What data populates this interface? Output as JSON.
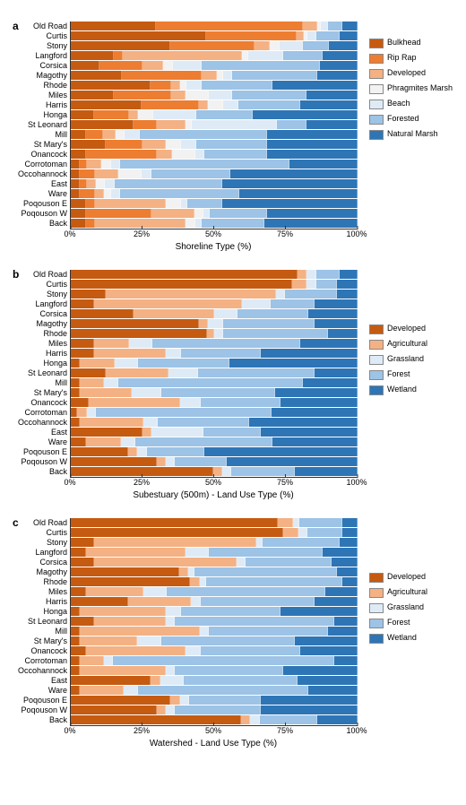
{
  "sites": [
    "Old Road",
    "Curtis",
    "Stony",
    "Langford",
    "Corsica",
    "Magothy",
    "Rhode",
    "Miles",
    "Harris",
    "Honga",
    "St Leonard",
    "Mill",
    "St Mary's",
    "Onancock",
    "Corrotoman",
    "Occohannock",
    "East",
    "Ware",
    "Poqouson E",
    "Poqouson W",
    "Back"
  ],
  "xticks": [
    0,
    25,
    50,
    75,
    100
  ],
  "panels": [
    {
      "label": "a",
      "xlabel": "Shoreline Type (%)",
      "legend": [
        {
          "color": "#c55a11",
          "label": "Bulkhead"
        },
        {
          "color": "#ed7d31",
          "label": "Rip Rap"
        },
        {
          "color": "#f4b183",
          "label": "Developed"
        },
        {
          "color": "#f2f2f2",
          "label": "Phragmites Marsh"
        },
        {
          "color": "#deebf7",
          "label": "Beach"
        },
        {
          "color": "#9dc3e6",
          "label": "Forested"
        },
        {
          "color": "#2e75b6",
          "label": "Natural Marsh"
        }
      ],
      "data": [
        [
          30,
          52,
          5,
          1,
          2,
          5,
          5
        ],
        [
          48,
          32,
          2,
          1,
          3,
          8,
          6
        ],
        [
          35,
          30,
          5,
          3,
          8,
          9,
          10
        ],
        [
          15,
          3,
          42,
          2,
          12,
          14,
          12
        ],
        [
          10,
          15,
          7,
          3,
          10,
          42,
          13
        ],
        [
          18,
          28,
          5,
          2,
          3,
          30,
          14
        ],
        [
          28,
          7,
          3,
          2,
          5,
          25,
          30
        ],
        [
          15,
          20,
          5,
          8,
          8,
          26,
          18
        ],
        [
          25,
          20,
          3,
          5,
          5,
          22,
          20
        ],
        [
          8,
          12,
          3,
          5,
          15,
          20,
          37
        ],
        [
          22,
          8,
          10,
          2,
          30,
          10,
          18
        ],
        [
          5,
          6,
          4,
          3,
          5,
          45,
          32
        ],
        [
          12,
          13,
          8,
          5,
          5,
          25,
          32
        ],
        [
          5,
          25,
          5,
          8,
          3,
          22,
          32
        ],
        [
          3,
          2,
          5,
          3,
          3,
          60,
          24
        ],
        [
          3,
          5,
          8,
          8,
          3,
          28,
          45
        ],
        [
          3,
          2,
          3,
          3,
          3,
          38,
          48
        ],
        [
          3,
          5,
          3,
          2,
          3,
          42,
          42
        ],
        [
          5,
          3,
          25,
          5,
          2,
          12,
          48
        ],
        [
          5,
          23,
          15,
          3,
          2,
          20,
          32
        ],
        [
          5,
          3,
          32,
          3,
          2,
          22,
          33
        ]
      ]
    },
    {
      "label": "b",
      "xlabel": "Subestuary (500m) - Land Use Type (%)",
      "legend": [
        {
          "color": "#c55a11",
          "label": "Developed"
        },
        {
          "color": "#f4b183",
          "label": "Agricultural"
        },
        {
          "color": "#deebf7",
          "label": "Grassland"
        },
        {
          "color": "#9dc3e6",
          "label": "Forest"
        },
        {
          "color": "#2e75b6",
          "label": "Wetland"
        }
      ],
      "data": [
        [
          80,
          3,
          3,
          8,
          6
        ],
        [
          78,
          5,
          3,
          7,
          7
        ],
        [
          12,
          60,
          3,
          18,
          7
        ],
        [
          8,
          52,
          10,
          15,
          15
        ],
        [
          22,
          28,
          8,
          25,
          17
        ],
        [
          45,
          3,
          5,
          32,
          15
        ],
        [
          48,
          2,
          3,
          37,
          10
        ],
        [
          8,
          12,
          8,
          52,
          20
        ],
        [
          8,
          25,
          5,
          28,
          34
        ],
        [
          3,
          12,
          8,
          32,
          45
        ],
        [
          12,
          22,
          10,
          41,
          15
        ],
        [
          3,
          8,
          5,
          65,
          19
        ],
        [
          3,
          18,
          10,
          40,
          29
        ],
        [
          6,
          32,
          7,
          28,
          27
        ],
        [
          2,
          3,
          3,
          62,
          30
        ],
        [
          3,
          22,
          5,
          32,
          38
        ],
        [
          25,
          3,
          18,
          20,
          34
        ],
        [
          5,
          12,
          5,
          48,
          30
        ],
        [
          20,
          3,
          3,
          20,
          54
        ],
        [
          30,
          3,
          3,
          18,
          46
        ],
        [
          50,
          3,
          3,
          22,
          22
        ]
      ]
    },
    {
      "label": "c",
      "xlabel": "Watershed - Land Use Type (%)",
      "legend": [
        {
          "color": "#c55a11",
          "label": "Developed"
        },
        {
          "color": "#f4b183",
          "label": "Agricultural"
        },
        {
          "color": "#deebf7",
          "label": "Grassland"
        },
        {
          "color": "#9dc3e6",
          "label": "Forest"
        },
        {
          "color": "#2e75b6",
          "label": "Wetland"
        }
      ],
      "data": [
        [
          73,
          5,
          2,
          15,
          5
        ],
        [
          75,
          5,
          3,
          12,
          5
        ],
        [
          8,
          57,
          2,
          27,
          6
        ],
        [
          5,
          35,
          8,
          40,
          12
        ],
        [
          8,
          50,
          3,
          30,
          9
        ],
        [
          38,
          3,
          2,
          50,
          7
        ],
        [
          42,
          3,
          2,
          48,
          5
        ],
        [
          5,
          20,
          8,
          56,
          11
        ],
        [
          20,
          22,
          3,
          40,
          15
        ],
        [
          3,
          30,
          5,
          35,
          27
        ],
        [
          8,
          25,
          3,
          56,
          8
        ],
        [
          3,
          42,
          3,
          42,
          10
        ],
        [
          3,
          20,
          8,
          47,
          22
        ],
        [
          5,
          35,
          5,
          35,
          20
        ],
        [
          3,
          8,
          3,
          78,
          8
        ],
        [
          3,
          30,
          3,
          38,
          26
        ],
        [
          28,
          3,
          8,
          40,
          21
        ],
        [
          3,
          15,
          5,
          60,
          17
        ],
        [
          35,
          3,
          3,
          25,
          34
        ],
        [
          30,
          3,
          3,
          30,
          34
        ],
        [
          60,
          3,
          3,
          20,
          14
        ]
      ]
    }
  ]
}
